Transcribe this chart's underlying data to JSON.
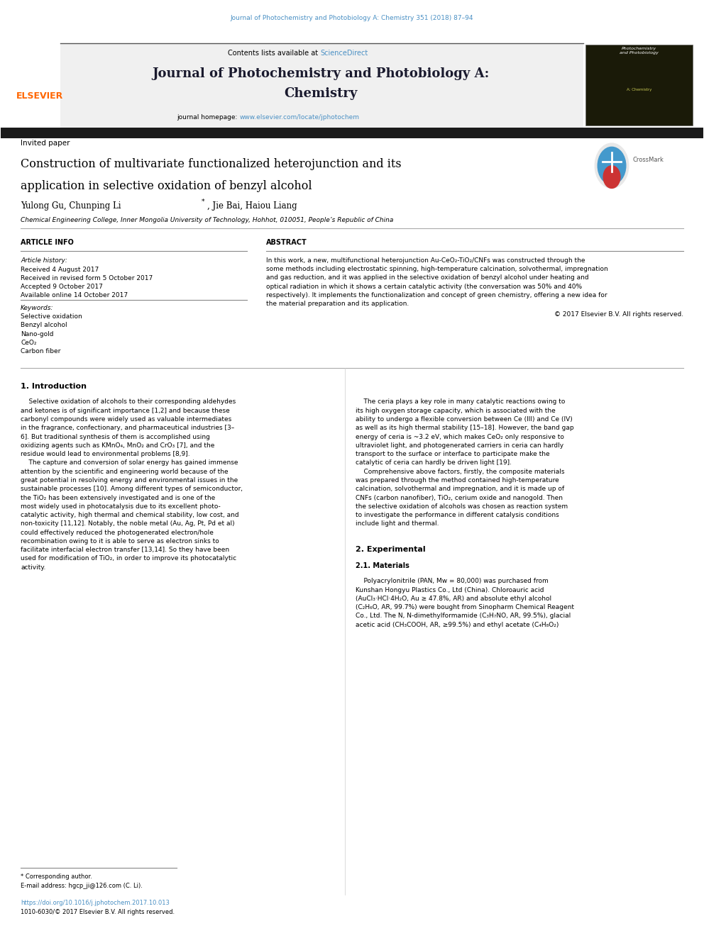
{
  "page_width": 9.92,
  "page_height": 13.23,
  "bg_color": "#ffffff",
  "top_citation": "Journal of Photochemistry and Photobiology A: Chemistry 351 (2018) 87–94",
  "top_citation_color": "#4a90c4",
  "journal_header_bg": "#f0f0f0",
  "sciencedirect_color": "#4a90c4",
  "journal_homepage_url": "www.elsevier.com/locate/jphotochem",
  "journal_homepage_color": "#4a90c4",
  "dark_bar_color": "#1a1a1a",
  "elsevier_color": "#ff6600",
  "invited_paper": "Invited paper",
  "affiliation": "Chemical Engineering College, Inner Mongolia University of Technology, Hohhot, 010051, People’s Republic of China",
  "article_info_label": "ARTICLE INFO",
  "abstract_label": "ABSTRACT",
  "article_history_label": "Article history:",
  "received1": "Received 4 August 2017",
  "received2": "Received in revised form 5 October 2017",
  "accepted": "Accepted 9 October 2017",
  "available": "Available online 14 October 2017",
  "keywords_label": "Keywords:",
  "keywords": [
    "Selective oxidation",
    "Benzyl alcohol",
    "Nano-gold",
    "CeO₂",
    "Carbon fiber"
  ],
  "copyright": "© 2017 Elsevier B.V. All rights reserved.",
  "intro_heading": "1. Introduction",
  "section2_heading": "2. Experimental",
  "section21_heading": "2.1. Materials",
  "footnote_corresponding": "* Corresponding author.",
  "footnote_email": "E-mail address: hgcp_ji@126.com (C. Li).",
  "doi_text": "https://doi.org/10.1016/j.jphotochem.2017.10.013",
  "issn_text": "1010-6030/© 2017 Elsevier B.V. All rights reserved."
}
